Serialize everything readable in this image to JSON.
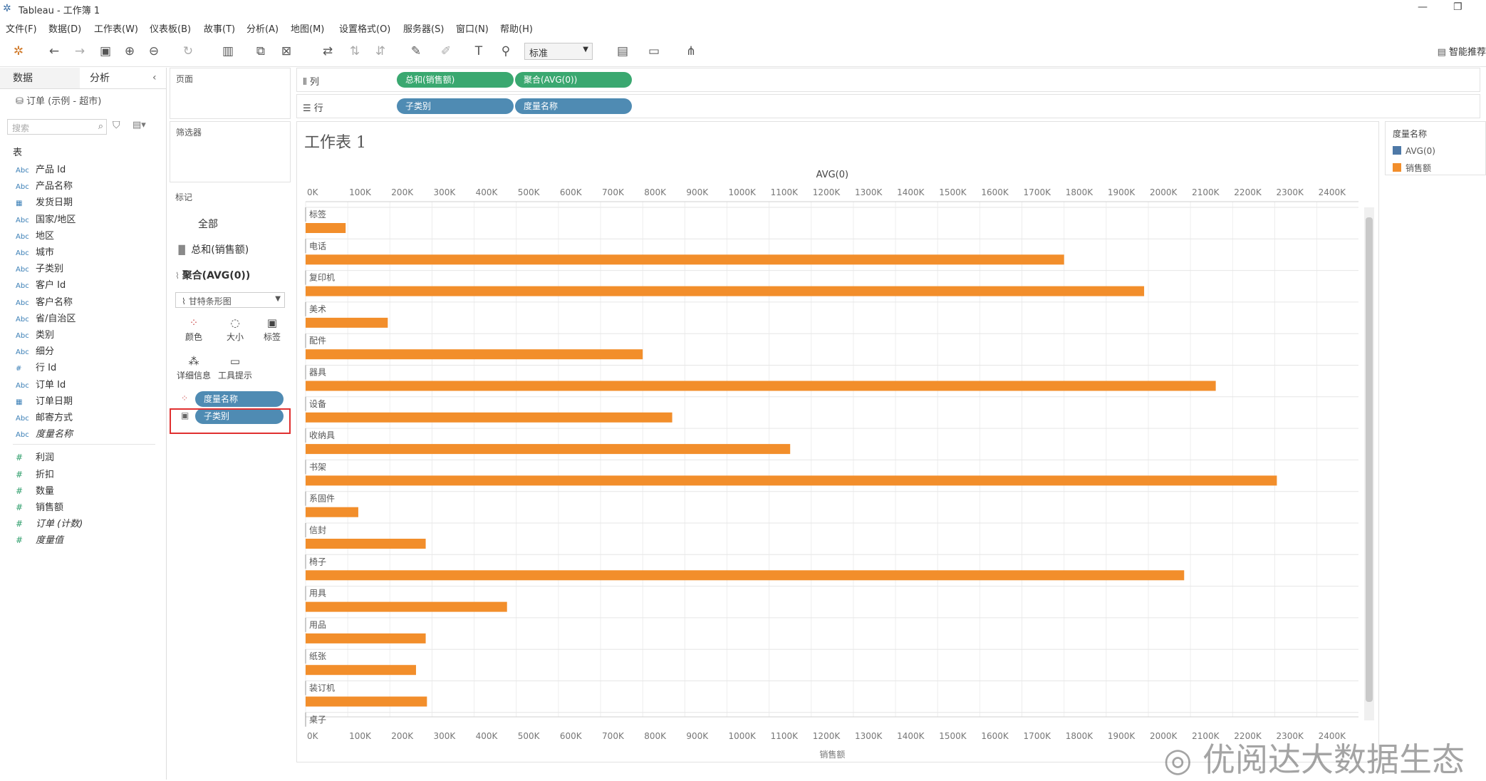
{
  "window": {
    "title": "Tableau - 工作簿 1"
  },
  "menu": [
    "文件(F)",
    "数据(D)",
    "工作表(W)",
    "仪表板(B)",
    "故事(T)",
    "分析(A)",
    "地图(M)",
    "设置格式(O)",
    "服务器(S)",
    "窗口(N)",
    "帮助(H)"
  ],
  "toolbar": {
    "fit_select": "标准",
    "smart_label": "智能推荐"
  },
  "left_pane": {
    "tab_data": "数据",
    "tab_analysis": "分析",
    "datasource": "订单 (示例 - 超市)",
    "search_placeholder": "搜索",
    "section_tables": "表",
    "dimensions": [
      {
        "icon": "Abc",
        "label": "产品 Id",
        "italic": false
      },
      {
        "icon": "Abc",
        "label": "产品名称",
        "italic": false
      },
      {
        "icon": "date",
        "label": "发货日期",
        "italic": false
      },
      {
        "icon": "Abc",
        "label": "国家/地区",
        "italic": false
      },
      {
        "icon": "Abc",
        "label": "地区",
        "italic": false
      },
      {
        "icon": "Abc",
        "label": "城市",
        "italic": false
      },
      {
        "icon": "Abc",
        "label": "子类别",
        "italic": false
      },
      {
        "icon": "Abc",
        "label": "客户 Id",
        "italic": false
      },
      {
        "icon": "Abc",
        "label": "客户名称",
        "italic": false
      },
      {
        "icon": "Abc",
        "label": "省/自治区",
        "italic": false
      },
      {
        "icon": "Abc",
        "label": "类别",
        "italic": false
      },
      {
        "icon": "Abc",
        "label": "细分",
        "italic": false
      },
      {
        "icon": "#",
        "label": "行 Id",
        "italic": false
      },
      {
        "icon": "Abc",
        "label": "订单 Id",
        "italic": false
      },
      {
        "icon": "date",
        "label": "订单日期",
        "italic": false
      },
      {
        "icon": "Abc",
        "label": "邮寄方式",
        "italic": false
      },
      {
        "icon": "Abc",
        "label": "度量名称",
        "italic": true
      }
    ],
    "measures": [
      {
        "label": "利润",
        "italic": false
      },
      {
        "label": "折扣",
        "italic": false
      },
      {
        "label": "数量",
        "italic": false
      },
      {
        "label": "销售额",
        "italic": false
      },
      {
        "label": "订单 (计数)",
        "italic": true
      },
      {
        "label": "度量值",
        "italic": true
      }
    ]
  },
  "cards": {
    "pages_title": "页面",
    "filters_title": "筛选器",
    "marks_title": "标记",
    "marks_all": "全部",
    "marks_sum": "总和(销售额)",
    "marks_avg": "聚合(AVG(0))",
    "mark_type": "甘特条形图",
    "btn_color": "颜色",
    "btn_size": "大小",
    "btn_label": "标签",
    "btn_detail": "详细信息",
    "btn_tooltip": "工具提示",
    "pill_measure_names": "度量名称",
    "pill_subcategory": "子类别"
  },
  "shelves": {
    "columns_label": "列",
    "rows_label": "行",
    "columns_pills": [
      "总和(销售额)",
      "聚合(AVG(0))"
    ],
    "rows_pills": [
      "子类别",
      "度量名称"
    ]
  },
  "sheet_title": "工作表 1",
  "legend": {
    "title": "度量名称",
    "items": [
      {
        "label": "AVG(0)",
        "color": "#4e79a7"
      },
      {
        "label": "销售额",
        "color": "#f28e2b"
      }
    ]
  },
  "chart_data": {
    "type": "bar",
    "orientation": "horizontal",
    "top_axis_title": "AVG(0)",
    "bottom_axis_title": "销售额",
    "xlim": [
      0,
      2500000
    ],
    "ticks": [
      "0K",
      "100K",
      "200K",
      "300K",
      "400K",
      "500K",
      "600K",
      "700K",
      "800K",
      "900K",
      "1000K",
      "1100K",
      "1200K",
      "1300K",
      "1400K",
      "1500K",
      "1600K",
      "1700K",
      "1800K",
      "1900K",
      "2000K",
      "2100K",
      "2200K",
      "2300K",
      "2400K"
    ],
    "tick_values": [
      0,
      100000,
      200000,
      300000,
      400000,
      500000,
      600000,
      700000,
      800000,
      900000,
      1000000,
      1100000,
      1200000,
      1300000,
      1400000,
      1500000,
      1600000,
      1700000,
      1800000,
      1900000,
      2000000,
      2100000,
      2200000,
      2300000,
      2400000
    ],
    "categories": [
      "标签",
      "电话",
      "复印机",
      "美术",
      "配件",
      "器具",
      "设备",
      "收纳具",
      "书架",
      "系固件",
      "信封",
      "椅子",
      "用具",
      "用品",
      "纸张",
      "装订机",
      "桌子"
    ],
    "series": [
      {
        "name": "销售额",
        "color": "#f28e2b",
        "values": [
          95000,
          1800000,
          1990000,
          195000,
          800000,
          2160000,
          870000,
          1150000,
          2305000,
          125000,
          285000,
          2085000,
          478000,
          285000,
          262000,
          288000,
          null
        ]
      }
    ]
  },
  "watermark": "优阅达大数据生态"
}
